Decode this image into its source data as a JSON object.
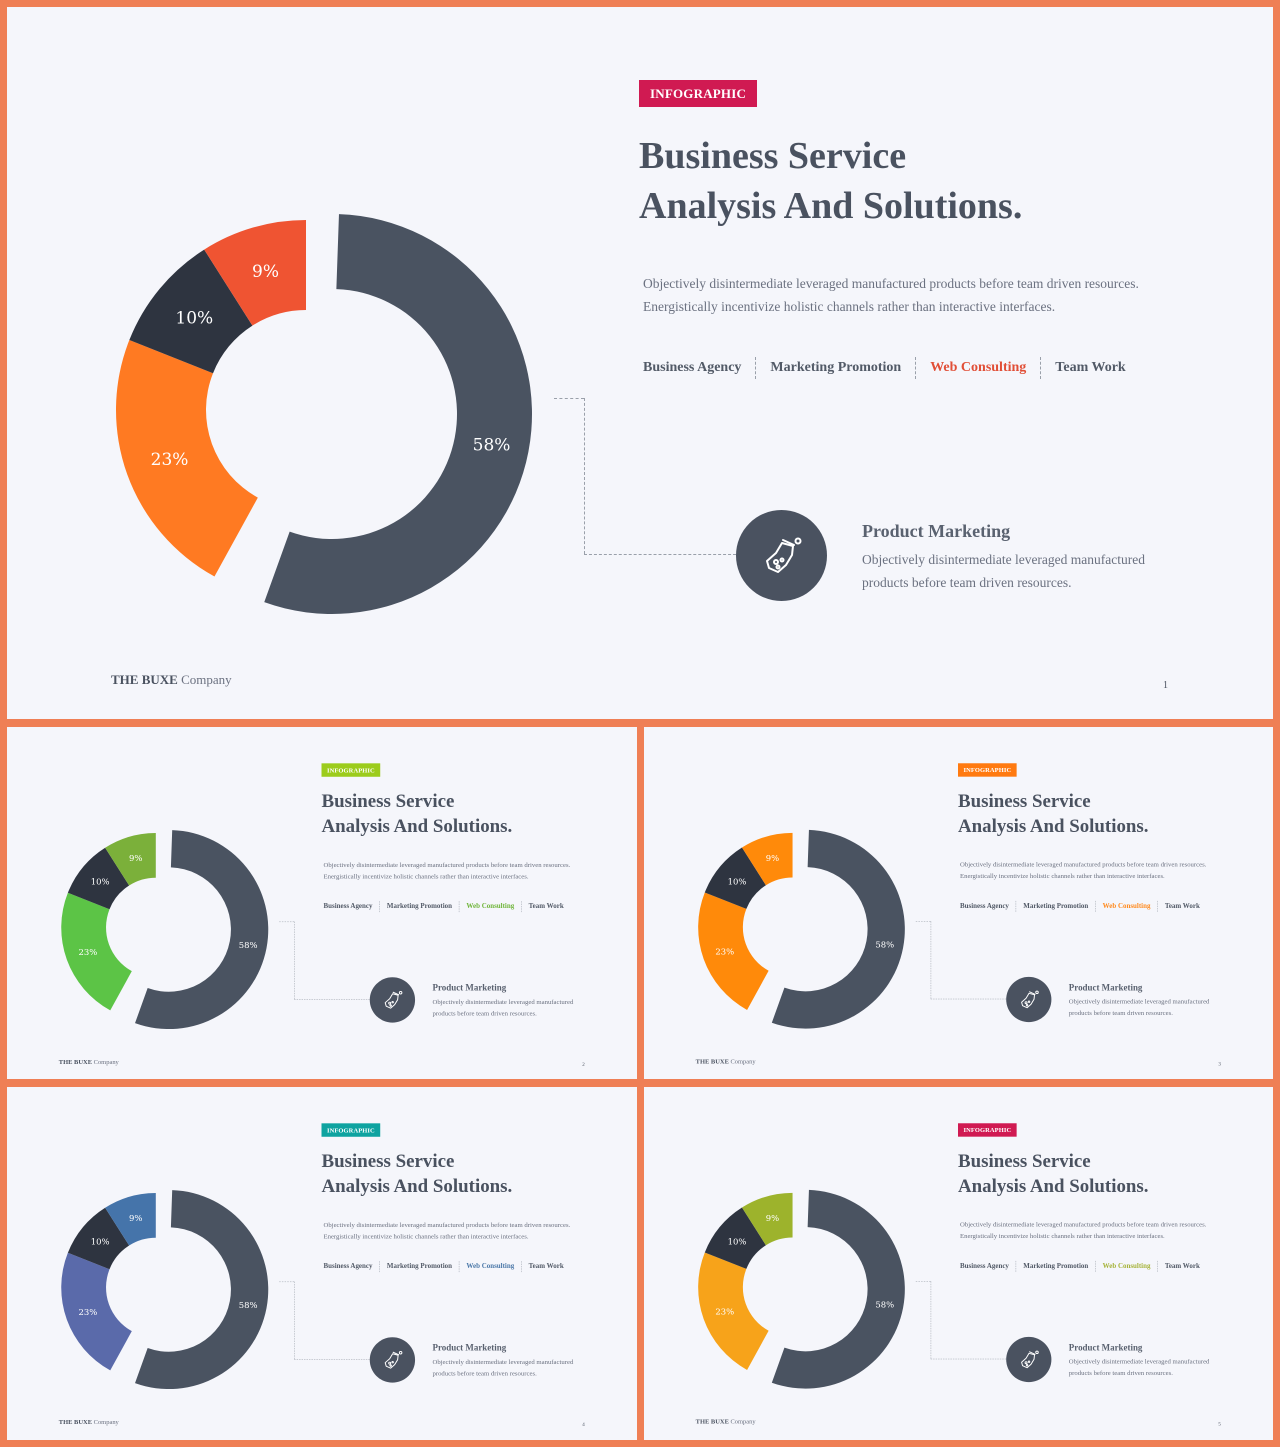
{
  "slides": [
    {
      "accent": "#d01a52",
      "tag_accent": "#e14f37",
      "colors": [
        "#4a5361",
        "#ff7a22",
        "#2e3440",
        "#ef5432"
      ],
      "page_number": "1"
    },
    {
      "accent": "#9ccc1c",
      "tag_accent": "#6fb53a",
      "colors": [
        "#4a5361",
        "#5cc446",
        "#2e3440",
        "#7bb03a"
      ],
      "page_number": "2"
    },
    {
      "accent": "#ff7a10",
      "tag_accent": "#ff8a1e",
      "colors": [
        "#4a5361",
        "#ff8a0a",
        "#2e3440",
        "#ff8a0a"
      ],
      "page_number": "3"
    },
    {
      "accent": "#0ea3a0",
      "tag_accent": "#4b78a8",
      "colors": [
        "#4a5361",
        "#5a6aaa",
        "#2e3440",
        "#4574aa"
      ],
      "page_number": "4"
    },
    {
      "accent": "#d01a52",
      "tag_accent": "#a6b33a",
      "colors": [
        "#4a5361",
        "#f7a31a",
        "#2e3440",
        "#9db32c"
      ],
      "page_number": "5"
    }
  ],
  "content": {
    "badge": "INFOGRAPHIC",
    "title_line1": "Business Service",
    "title_line2": "Analysis And Solutions.",
    "desc_line1": "Objectively disintermediate leveraged manufactured products before team driven resources.",
    "desc_line2": "Energistically incentivize holistic channels rather than interactive interfaces.",
    "tags": [
      "Business Agency",
      "Marketing Promotion",
      "Web Consulting",
      "Team Work"
    ],
    "active_tag_index": 2,
    "feature_title": "Product Marketing",
    "feature_desc_line1": "Objectively disintermediate leveraged manufactured",
    "feature_desc_line2": "products before team driven resources.",
    "brand_bold": "THE BUXE",
    "brand_light": "Company",
    "icon": "flask-icon"
  },
  "chart_data": {
    "type": "pie",
    "donut": true,
    "categories": [
      "58%",
      "23%",
      "10%",
      "9%"
    ],
    "values": [
      58,
      23,
      10,
      9
    ]
  }
}
